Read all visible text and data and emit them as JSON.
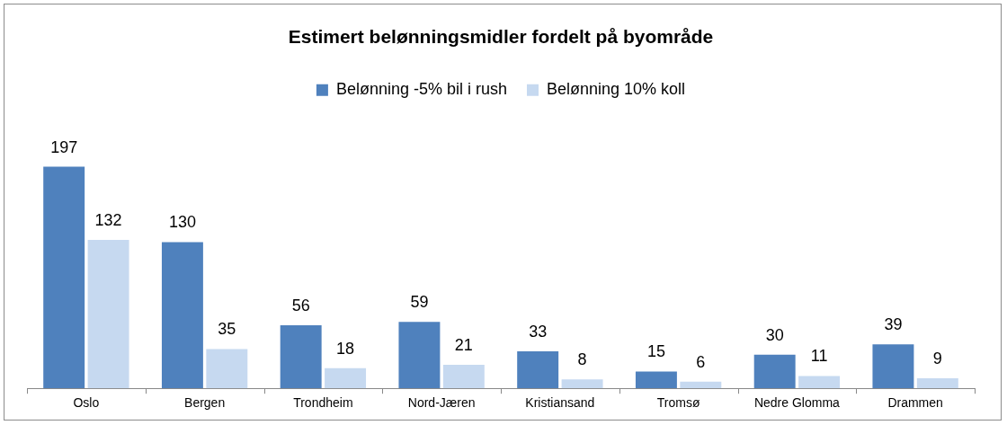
{
  "chart_data": {
    "type": "bar",
    "title": "Estimert belønningsmidler fordelt på byområde",
    "categories": [
      "Oslo",
      "Bergen",
      "Trondheim",
      "Nord-Jæren",
      "Kristiansand",
      "Tromsø",
      "Nedre Glomma",
      "Drammen"
    ],
    "series": [
      {
        "name": "Belønning -5% bil i rush",
        "color": "#4f81bd",
        "values": [
          197,
          130,
          56,
          59,
          33,
          15,
          30,
          39
        ]
      },
      {
        "name": "Belønning 10% koll",
        "color": "#c6d9f0",
        "values": [
          132,
          35,
          18,
          21,
          8,
          6,
          11,
          9
        ]
      }
    ],
    "data_labels": true,
    "legend": "top",
    "grid": false
  }
}
